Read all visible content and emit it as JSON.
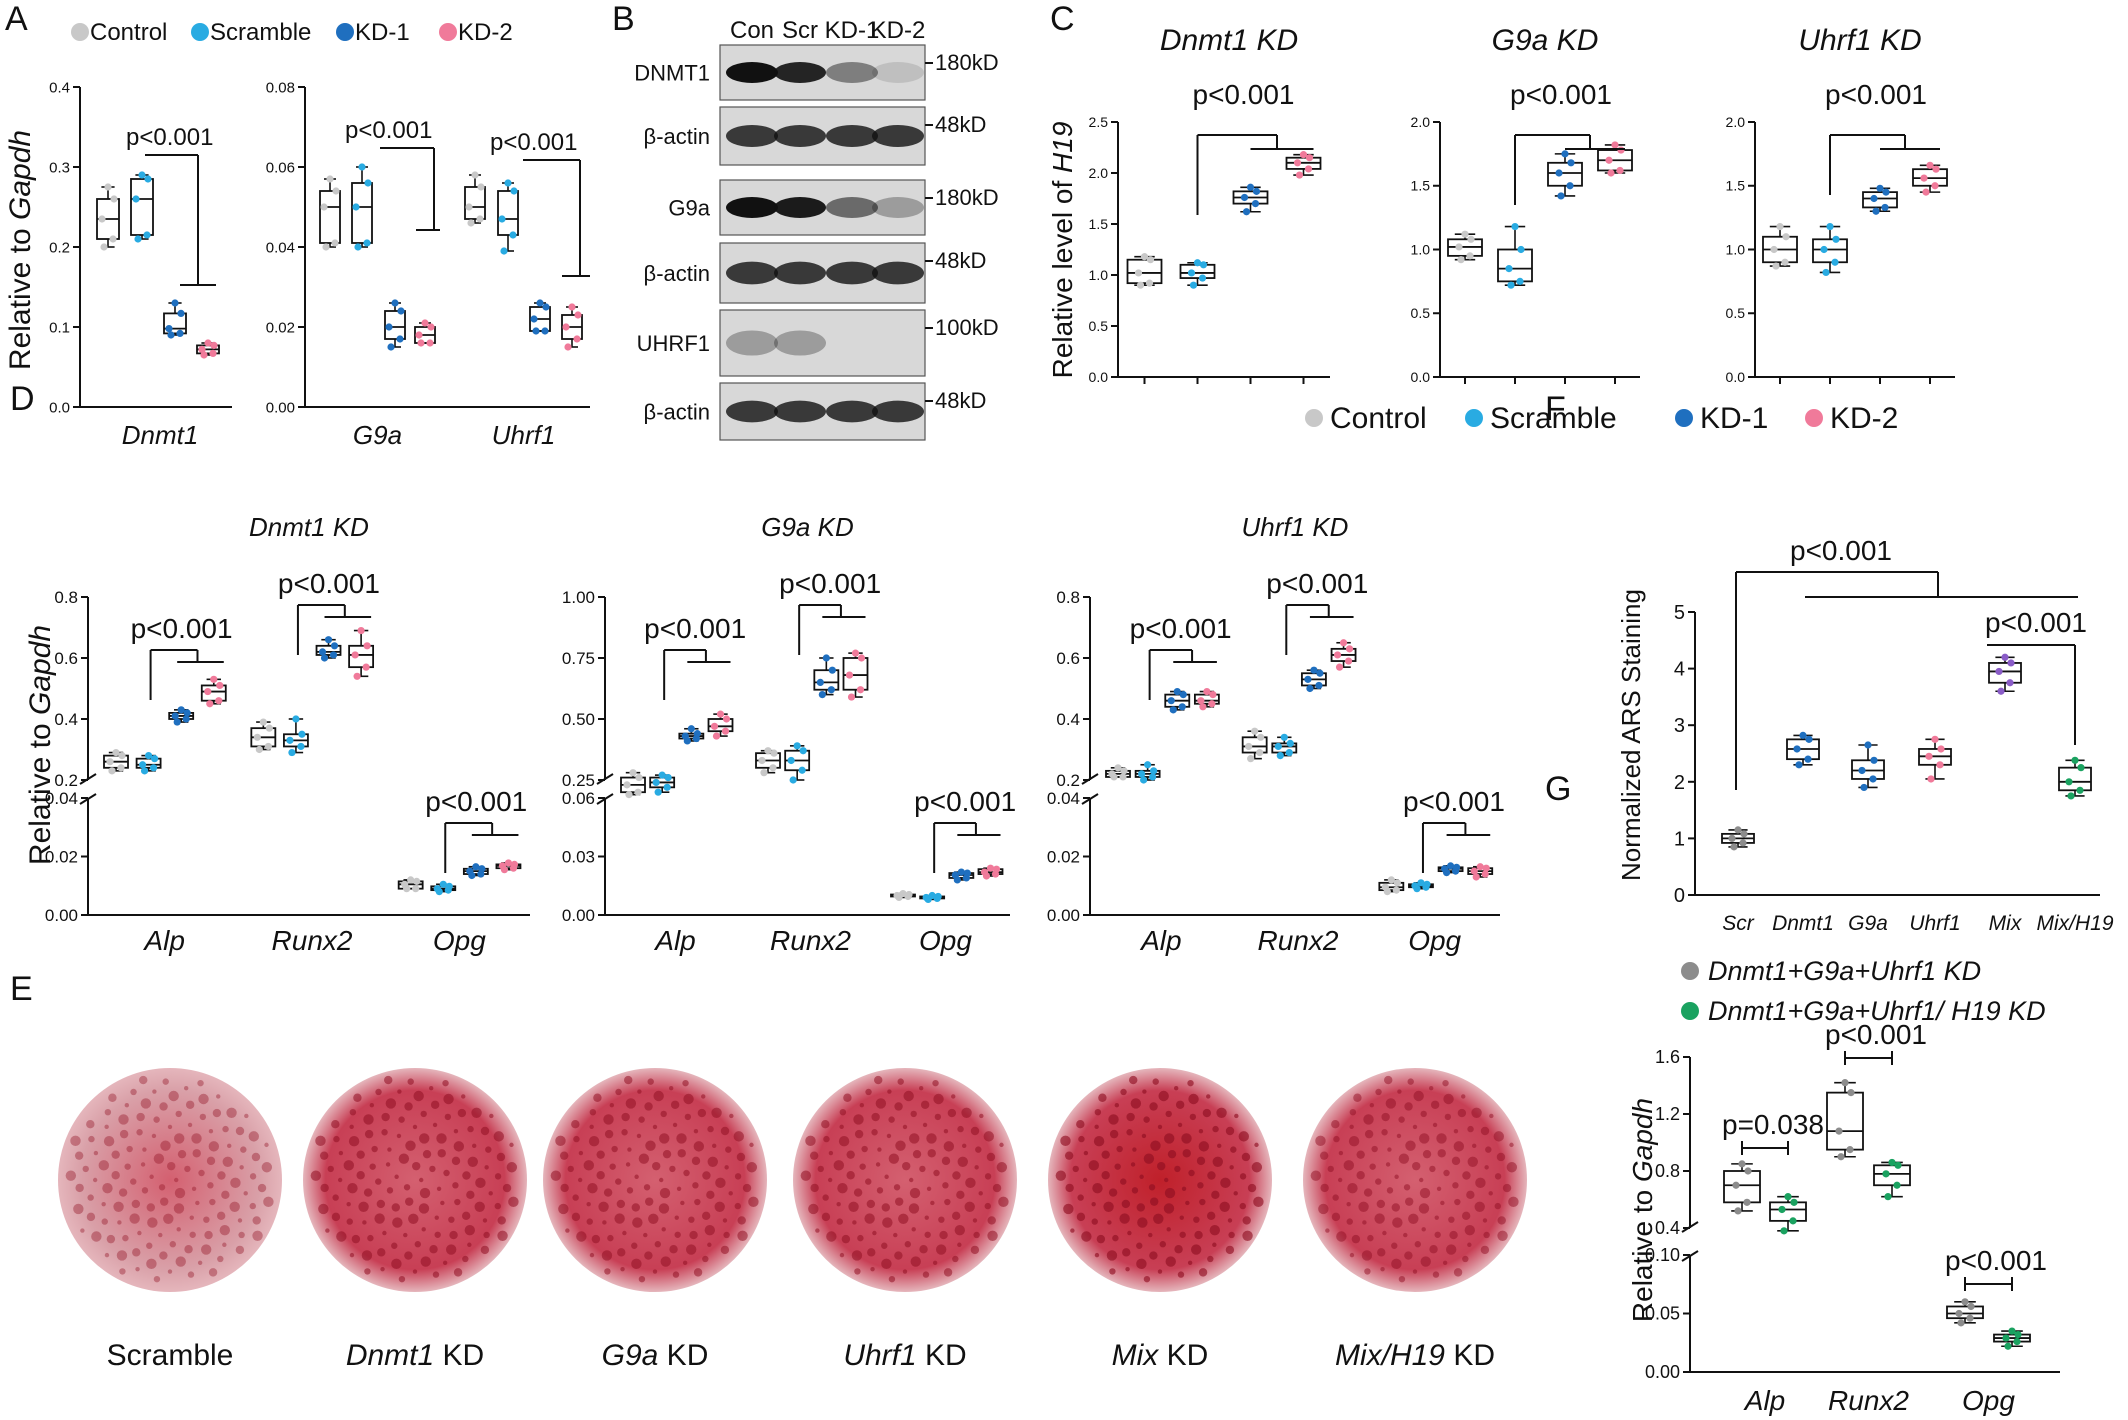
{
  "colors": {
    "Control": "#c8c8c8",
    "Scramble": "#29abe2",
    "KD-1": "#1f6fbf",
    "KD-2": "#f07a9a",
    "Mix": "#8a5cc7",
    "MixH19": "#1aa260",
    "grey": "#8c8c8c",
    "green": "#1aa260"
  },
  "panel_letters": [
    "A",
    "B",
    "C",
    "D",
    "E",
    "F",
    "G"
  ],
  "legend_4": [
    "Control",
    "Scramble",
    "KD-1",
    "KD-2"
  ],
  "legend_g": [
    {
      "pre": "Dnmt1+G9a+Uhrf1 KD",
      "name": "Dnmt1+G9a+Uhrf1 KD"
    },
    {
      "pre": "Dnmt1+G9a+Uhrf1/ H19 KD",
      "name": "Dnmt1+G9a+Uhrf1/ H19 KD"
    }
  ],
  "blot": {
    "lane_labels": [
      "Con",
      "Scr",
      "KD-1",
      "KD-2"
    ],
    "rows": [
      {
        "label": "DNMT1",
        "size": "180kD",
        "intensity": [
          1.0,
          0.9,
          0.45,
          0.12
        ]
      },
      {
        "label": "β-actin",
        "size": "48kD",
        "intensity": [
          0.8,
          0.8,
          0.8,
          0.8
        ]
      },
      {
        "label": "G9a",
        "size": "180kD",
        "intensity": [
          1.0,
          0.95,
          0.55,
          0.3
        ]
      },
      {
        "label": "β-actin",
        "size": "48kD",
        "intensity": [
          0.8,
          0.8,
          0.8,
          0.8
        ]
      },
      {
        "label": "UHRF1",
        "size": "100kD",
        "intensity": [
          0.3,
          0.3,
          0.0,
          0.0
        ]
      },
      {
        "label": "β-actin",
        "size": "48kD",
        "intensity": [
          0.8,
          0.8,
          0.8,
          0.8
        ]
      }
    ]
  },
  "staining": {
    "labels": [
      {
        "it": "",
        "rest": "Scramble"
      },
      {
        "it": "Dnmt1",
        "rest": " KD"
      },
      {
        "it": "G9a",
        "rest": " KD"
      },
      {
        "it": "Uhrf1",
        "rest": " KD"
      },
      {
        "it": "Mix",
        "rest": " KD"
      },
      {
        "it": "Mix/H19",
        "rest": " KD"
      }
    ],
    "intensity": [
      0.35,
      0.75,
      0.7,
      0.72,
      0.95,
      0.6
    ]
  },
  "chart_data": [
    {
      "panel": "A",
      "type": "box",
      "ylabel": "Relative to Gapdh",
      "yticks": [
        "0.0",
        "0.1",
        "0.2",
        "0.3",
        "0.4"
      ],
      "ylim": [
        0,
        0.4
      ],
      "categories": [
        "Dnmt1"
      ],
      "groups": [
        "Control",
        "Scramble",
        "KD-1",
        "KD-2"
      ],
      "boxes": [
        [
          [
            0.2,
            0.21,
            0.235,
            0.26,
            0.275
          ]
        ],
        [
          [
            0.21,
            0.215,
            0.26,
            0.285,
            0.29
          ]
        ],
        [
          [
            0.09,
            0.092,
            0.098,
            0.117,
            0.13
          ]
        ],
        [
          [
            0.065,
            0.067,
            0.072,
            0.077,
            0.08
          ]
        ]
      ],
      "annotation": "p<0.001"
    },
    {
      "panel": "A",
      "type": "box",
      "yticks": [
        "0.00",
        "0.02",
        "0.04",
        "0.06",
        "0.08"
      ],
      "ylim": [
        0,
        0.08
      ],
      "categories": [
        "G9a",
        "Uhrf1"
      ],
      "groups": [
        "Control",
        "Scramble",
        "KD-1",
        "KD-2"
      ],
      "boxes": [
        [
          [
            0.04,
            0.041,
            0.05,
            0.054,
            0.057
          ],
          [
            0.046,
            0.047,
            0.05,
            0.055,
            0.058
          ]
        ],
        [
          [
            0.04,
            0.041,
            0.05,
            0.056,
            0.06
          ],
          [
            0.039,
            0.043,
            0.047,
            0.054,
            0.056
          ]
        ],
        [
          [
            0.015,
            0.017,
            0.02,
            0.024,
            0.026
          ],
          [
            0.019,
            0.019,
            0.022,
            0.025,
            0.026
          ]
        ],
        [
          [
            0.016,
            0.016,
            0.018,
            0.02,
            0.021
          ],
          [
            0.015,
            0.017,
            0.02,
            0.023,
            0.025
          ]
        ]
      ],
      "annotations": [
        "p<0.001",
        "p<0.001"
      ]
    },
    {
      "panel": "C",
      "type": "box",
      "title": "Dnmt1 KD",
      "ylabel": "Relative level of H19",
      "yticks": [
        "0.0",
        "0.5",
        "1.0",
        "1.5",
        "2.0",
        "2.5"
      ],
      "ylim": [
        0,
        2.5
      ],
      "groups": [
        "Control",
        "Scramble",
        "KD-1",
        "KD-2"
      ],
      "boxes": [
        [
          0.9,
          0.92,
          1.02,
          1.15,
          1.18
        ],
        [
          0.9,
          0.97,
          1.02,
          1.1,
          1.12
        ],
        [
          1.62,
          1.7,
          1.76,
          1.82,
          1.86
        ],
        [
          1.98,
          2.04,
          2.1,
          2.15,
          2.18
        ]
      ],
      "annotation": "p<0.001"
    },
    {
      "panel": "C",
      "type": "box",
      "title": "G9a KD",
      "yticks": [
        "0.0",
        "0.5",
        "1.0",
        "1.5",
        "2.0"
      ],
      "ylim": [
        0,
        2.0
      ],
      "groups": [
        "Control",
        "Scramble",
        "KD-1",
        "KD-2"
      ],
      "boxes": [
        [
          0.92,
          0.95,
          1.02,
          1.08,
          1.12
        ],
        [
          0.72,
          0.75,
          0.85,
          1.0,
          1.18
        ],
        [
          1.42,
          1.5,
          1.6,
          1.68,
          1.75
        ],
        [
          1.6,
          1.62,
          1.7,
          1.78,
          1.82
        ]
      ],
      "annotation": "p<0.001"
    },
    {
      "panel": "C",
      "type": "box",
      "title": "Uhrf1 KD",
      "yticks": [
        "0.0",
        "0.5",
        "1.0",
        "1.5",
        "2.0"
      ],
      "ylim": [
        0,
        2.0
      ],
      "groups": [
        "Control",
        "Scramble",
        "KD-1",
        "KD-2"
      ],
      "boxes": [
        [
          0.87,
          0.9,
          1.0,
          1.1,
          1.18
        ],
        [
          0.82,
          0.9,
          1.0,
          1.08,
          1.18
        ],
        [
          1.3,
          1.33,
          1.4,
          1.45,
          1.48
        ],
        [
          1.45,
          1.5,
          1.56,
          1.63,
          1.66
        ]
      ],
      "annotation": "p<0.001"
    },
    {
      "panel": "D",
      "type": "box",
      "title": "Dnmt1 KD",
      "ylabel": "Relative to Gapdh",
      "categories": [
        "Alp",
        "Runx2",
        "Opg"
      ],
      "yticks_upper": [
        "0.2",
        "0.4",
        "0.6",
        "0.8"
      ],
      "ylim_upper": [
        0.2,
        0.8
      ],
      "yticks_lower": [
        "0.00",
        "0.02",
        "0.04"
      ],
      "ylim_lower": [
        0,
        0.04
      ],
      "groups": [
        "Control",
        "Scramble",
        "KD-1",
        "KD-2"
      ],
      "boxes": {
        "Alp": [
          [
            0.23,
            0.24,
            0.26,
            0.28,
            0.29
          ],
          [
            0.23,
            0.24,
            0.25,
            0.27,
            0.28
          ],
          [
            0.39,
            0.4,
            0.41,
            0.42,
            0.43
          ],
          [
            0.45,
            0.46,
            0.49,
            0.51,
            0.53
          ]
        ],
        "Runx2": [
          [
            0.3,
            0.31,
            0.34,
            0.37,
            0.39
          ],
          [
            0.29,
            0.31,
            0.33,
            0.35,
            0.4
          ],
          [
            0.6,
            0.61,
            0.62,
            0.64,
            0.66
          ],
          [
            0.54,
            0.57,
            0.61,
            0.64,
            0.69
          ]
        ],
        "Opg": [
          [
            0.009,
            0.009,
            0.0105,
            0.0115,
            0.012
          ],
          [
            0.008,
            0.0085,
            0.009,
            0.0098,
            0.0105
          ],
          [
            0.0135,
            0.014,
            0.015,
            0.0158,
            0.0165
          ],
          [
            0.0155,
            0.016,
            0.0168,
            0.0173,
            0.0178
          ]
        ]
      },
      "annotations": [
        "p<0.001",
        "p<0.001",
        "p<0.001"
      ]
    },
    {
      "panel": "D",
      "type": "box",
      "title": "G9a KD",
      "categories": [
        "Alp",
        "Runx2",
        "Opg"
      ],
      "yticks_upper": [
        "0.25",
        "0.50",
        "0.75",
        "1.00"
      ],
      "ylim_upper": [
        0.25,
        1.0
      ],
      "yticks_lower": [
        "0.00",
        "0.03",
        "0.06"
      ],
      "ylim_lower": [
        0,
        0.06
      ],
      "groups": [
        "Control",
        "Scramble",
        "KD-1",
        "KD-2"
      ],
      "boxes": {
        "Alp": [
          [
            0.19,
            0.2,
            0.23,
            0.26,
            0.28
          ],
          [
            0.2,
            0.22,
            0.24,
            0.26,
            0.27
          ],
          [
            0.41,
            0.42,
            0.43,
            0.44,
            0.46
          ],
          [
            0.43,
            0.45,
            0.47,
            0.5,
            0.52
          ]
        ],
        "Runx2": [
          [
            0.28,
            0.3,
            0.33,
            0.36,
            0.37
          ],
          [
            0.25,
            0.29,
            0.33,
            0.37,
            0.39
          ],
          [
            0.6,
            0.62,
            0.65,
            0.7,
            0.75
          ],
          [
            0.59,
            0.62,
            0.68,
            0.75,
            0.77
          ]
        ],
        "Opg": [
          [
            0.009,
            0.0095,
            0.01,
            0.0105,
            0.011
          ],
          [
            0.008,
            0.0085,
            0.009,
            0.0095,
            0.01
          ],
          [
            0.018,
            0.019,
            0.0205,
            0.0215,
            0.022
          ],
          [
            0.02,
            0.021,
            0.022,
            0.0235,
            0.024
          ]
        ]
      },
      "annotations": [
        "p<0.001",
        "p<0.001",
        "p<0.001"
      ]
    },
    {
      "panel": "D",
      "type": "box",
      "title": "Uhrf1 KD",
      "categories": [
        "Alp",
        "Runx2",
        "Opg"
      ],
      "yticks_upper": [
        "0.2",
        "0.4",
        "0.6",
        "0.8"
      ],
      "ylim_upper": [
        0.2,
        0.8
      ],
      "yticks_lower": [
        "0.00",
        "0.02",
        "0.04"
      ],
      "ylim_lower": [
        0,
        0.04
      ],
      "groups": [
        "Control",
        "Scramble",
        "KD-1",
        "KD-2"
      ],
      "boxes": {
        "Alp": [
          [
            0.21,
            0.21,
            0.22,
            0.23,
            0.24
          ],
          [
            0.2,
            0.21,
            0.22,
            0.23,
            0.25
          ],
          [
            0.43,
            0.44,
            0.46,
            0.48,
            0.49
          ],
          [
            0.44,
            0.45,
            0.46,
            0.48,
            0.49
          ]
        ],
        "Runx2": [
          [
            0.27,
            0.29,
            0.31,
            0.34,
            0.36
          ],
          [
            0.28,
            0.29,
            0.31,
            0.32,
            0.34
          ],
          [
            0.5,
            0.51,
            0.53,
            0.55,
            0.56
          ],
          [
            0.57,
            0.59,
            0.61,
            0.63,
            0.65
          ]
        ],
        "Opg": [
          [
            0.008,
            0.0085,
            0.0095,
            0.011,
            0.012
          ],
          [
            0.009,
            0.0095,
            0.01,
            0.0105,
            0.011
          ],
          [
            0.0145,
            0.015,
            0.0158,
            0.0163,
            0.0168
          ],
          [
            0.013,
            0.014,
            0.015,
            0.016,
            0.0165
          ]
        ]
      },
      "annotations": [
        "p<0.001",
        "p<0.001",
        "p<0.001"
      ]
    },
    {
      "panel": "F",
      "type": "box",
      "ylabel": "Normalized ARS Staining",
      "yticks": [
        "0",
        "1",
        "2",
        "3",
        "4",
        "5"
      ],
      "ylim": [
        0,
        5
      ],
      "categories": [
        "Scr",
        "Dnmt1",
        "G9a",
        "Uhrf1",
        "Mix",
        "Mix/H19"
      ],
      "boxes": [
        [
          0.85,
          0.92,
          1.0,
          1.08,
          1.15
        ],
        [
          2.3,
          2.4,
          2.58,
          2.75,
          2.82
        ],
        [
          1.9,
          2.05,
          2.2,
          2.38,
          2.65
        ],
        [
          2.05,
          2.3,
          2.45,
          2.58,
          2.75
        ],
        [
          3.6,
          3.75,
          3.95,
          4.1,
          4.2
        ],
        [
          1.75,
          1.85,
          2.0,
          2.25,
          2.38
        ]
      ],
      "annotations": [
        "p<0.001",
        "p<0.001"
      ]
    },
    {
      "panel": "G",
      "type": "box",
      "ylabel": "Relative to Gapdh",
      "categories": [
        "Alp",
        "Runx2",
        "Opg"
      ],
      "yticks_upper": [
        "0.4",
        "0.8",
        "1.2",
        "1.6"
      ],
      "ylim_upper": [
        0.4,
        1.6
      ],
      "yticks_lower": [
        "0.00",
        "0.05",
        "0.10"
      ],
      "ylim_lower": [
        0,
        0.1
      ],
      "groups": [
        "Dnmt1+G9a+Uhrf1 KD",
        "Dnmt1+G9a+Uhrf1/ H19 KD"
      ],
      "boxes": {
        "Alp": [
          [
            0.52,
            0.58,
            0.7,
            0.8,
            0.85
          ],
          [
            0.38,
            0.45,
            0.53,
            0.58,
            0.62
          ]
        ],
        "Runx2": [
          [
            0.9,
            0.95,
            1.08,
            1.35,
            1.42
          ],
          [
            0.62,
            0.7,
            0.78,
            0.84,
            0.86
          ]
        ],
        "Opg": [
          [
            0.042,
            0.046,
            0.05,
            0.056,
            0.06
          ],
          [
            0.022,
            0.026,
            0.029,
            0.032,
            0.035
          ]
        ]
      },
      "annotations": [
        "p=0.038",
        "p<0.001",
        "p<0.001"
      ]
    }
  ]
}
